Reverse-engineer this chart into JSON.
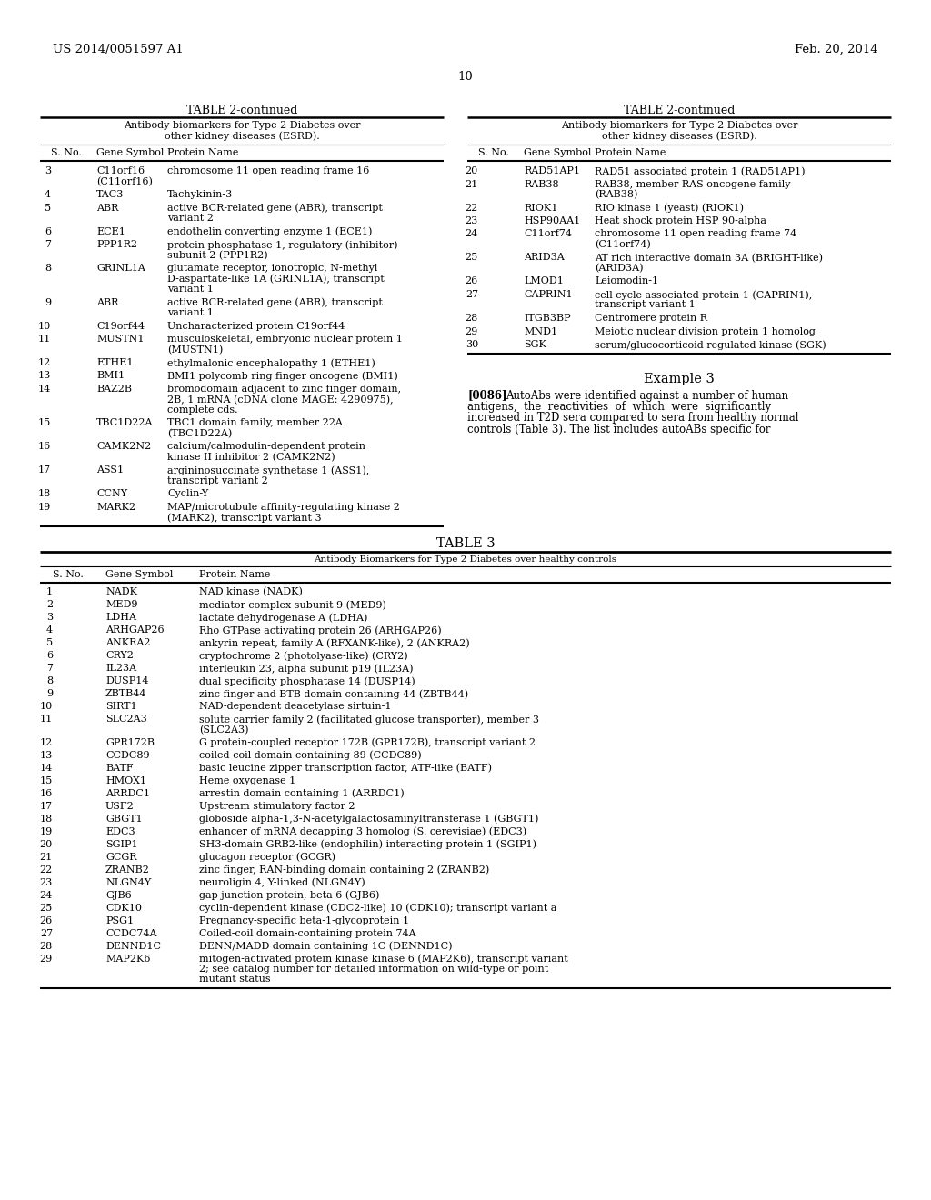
{
  "page_header_left": "US 2014/0051597 A1",
  "page_header_right": "Feb. 20, 2014",
  "page_number": "10",
  "table2_continued_title": "TABLE 2-continued",
  "table2_subtitle": "Antibody biomarkers for Type 2 Diabetes over\nother kidney diseases (ESRD).",
  "table2_left_rows": [
    [
      "3",
      "C11orf16\n(C11orf16)",
      "chromosome 11 open reading frame 16"
    ],
    [
      "4",
      "TAC3",
      "Tachykinin-3"
    ],
    [
      "5",
      "ABR",
      "active BCR-related gene (ABR), transcript\nvariant 2"
    ],
    [
      "6",
      "ECE1",
      "endothelin converting enzyme 1 (ECE1)"
    ],
    [
      "7",
      "PPP1R2",
      "protein phosphatase 1, regulatory (inhibitor)\nsubunit 2 (PPP1R2)"
    ],
    [
      "8",
      "GRINL1A",
      "glutamate receptor, ionotropic, N-methyl\nD-aspartate-like 1A (GRINL1A), transcript\nvariant 1"
    ],
    [
      "9",
      "ABR",
      "active BCR-related gene (ABR), transcript\nvariant 1"
    ],
    [
      "10",
      "C19orf44",
      "Uncharacterized protein C19orf44"
    ],
    [
      "11",
      "MUSTN1",
      "musculoskeletal, embryonic nuclear protein 1\n(MUSTN1)"
    ],
    [
      "12",
      "ETHE1",
      "ethylmalonic encephalopathy 1 (ETHE1)"
    ],
    [
      "13",
      "BMI1",
      "BMI1 polycomb ring finger oncogene (BMI1)"
    ],
    [
      "14",
      "BAZ2B",
      "bromodomain adjacent to zinc finger domain,\n2B, 1 mRNA (cDNA clone MAGE: 4290975),\ncomplete cds."
    ],
    [
      "15",
      "TBC1D22A",
      "TBC1 domain family, member 22A\n(TBC1D22A)"
    ],
    [
      "16",
      "CAMK2N2",
      "calcium/calmodulin-dependent protein\nkinase II inhibitor 2 (CAMK2N2)"
    ],
    [
      "17",
      "ASS1",
      "argininosuccinate synthetase 1 (ASS1),\ntranscript variant 2"
    ],
    [
      "18",
      "CCNY",
      "Cyclin-Y"
    ],
    [
      "19",
      "MARK2",
      "MAP/microtubule affinity-regulating kinase 2\n(MARK2), transcript variant 3"
    ]
  ],
  "table2_right_rows": [
    [
      "20",
      "RAD51AP1",
      "RAD51 associated protein 1 (RAD51AP1)"
    ],
    [
      "21",
      "RAB38",
      "RAB38, member RAS oncogene family\n(RAB38)"
    ],
    [
      "22",
      "RIOK1",
      "RIO kinase 1 (yeast) (RIOK1)"
    ],
    [
      "23",
      "HSP90AA1",
      "Heat shock protein HSP 90-alpha"
    ],
    [
      "24",
      "C11orf74",
      "chromosome 11 open reading frame 74\n(C11orf74)"
    ],
    [
      "25",
      "ARID3A",
      "AT rich interactive domain 3A (BRIGHT-like)\n(ARID3A)"
    ],
    [
      "26",
      "LMOD1",
      "Leiomodin-1"
    ],
    [
      "27",
      "CAPRIN1",
      "cell cycle associated protein 1 (CAPRIN1),\ntranscript variant 1"
    ],
    [
      "28",
      "ITGB3BP",
      "Centromere protein R"
    ],
    [
      "29",
      "MND1",
      "Meiotic nuclear division protein 1 homolog"
    ],
    [
      "30",
      "SGK",
      "serum/glucocorticoid regulated kinase (SGK)"
    ]
  ],
  "example3_title": "Example 3",
  "example3_lines": [
    "[0086]    AutoAbs were identified against a number of human",
    "antigens,  the  reactivities  of  which  were  significantly",
    "increased in T2D sera compared to sera from healthy normal",
    "controls (Table 3). The list includes autoABs specific for"
  ],
  "table3_title": "TABLE 3",
  "table3_subtitle": "Antibody Biomarkers for Type 2 Diabetes over healthy controls",
  "table3_rows": [
    [
      "1",
      "NADK",
      "NAD kinase (NADK)"
    ],
    [
      "2",
      "MED9",
      "mediator complex subunit 9 (MED9)"
    ],
    [
      "3",
      "LDHA",
      "lactate dehydrogenase A (LDHA)"
    ],
    [
      "4",
      "ARHGAP26",
      "Rho GTPase activating protein 26 (ARHGAP26)"
    ],
    [
      "5",
      "ANKRA2",
      "ankyrin repeat, family A (RFXANK-like), 2 (ANKRA2)"
    ],
    [
      "6",
      "CRY2",
      "cryptochrome 2 (photolyase-like) (CRY2)"
    ],
    [
      "7",
      "IL23A",
      "interleukin 23, alpha subunit p19 (IL23A)"
    ],
    [
      "8",
      "DUSP14",
      "dual specificity phosphatase 14 (DUSP14)"
    ],
    [
      "9",
      "ZBTB44",
      "zinc finger and BTB domain containing 44 (ZBTB44)"
    ],
    [
      "10",
      "SIRT1",
      "NAD-dependent deacetylase sirtuin-1"
    ],
    [
      "11",
      "SLC2A3",
      "solute carrier family 2 (facilitated glucose transporter), member 3\n(SLC2A3)"
    ],
    [
      "12",
      "GPR172B",
      "G protein-coupled receptor 172B (GPR172B), transcript variant 2"
    ],
    [
      "13",
      "CCDC89",
      "coiled-coil domain containing 89 (CCDC89)"
    ],
    [
      "14",
      "BATF",
      "basic leucine zipper transcription factor, ATF-like (BATF)"
    ],
    [
      "15",
      "HMOX1",
      "Heme oxygenase 1"
    ],
    [
      "16",
      "ARRDC1",
      "arrestin domain containing 1 (ARRDC1)"
    ],
    [
      "17",
      "USF2",
      "Upstream stimulatory factor 2"
    ],
    [
      "18",
      "GBGT1",
      "globoside alpha-1,3-N-acetylgalactosaminyltransferase 1 (GBGT1)"
    ],
    [
      "19",
      "EDC3",
      "enhancer of mRNA decapping 3 homolog (S. cerevisiae) (EDC3)"
    ],
    [
      "20",
      "SGIP1",
      "SH3-domain GRB2-like (endophilin) interacting protein 1 (SGIP1)"
    ],
    [
      "21",
      "GCGR",
      "glucagon receptor (GCGR)"
    ],
    [
      "22",
      "ZRANB2",
      "zinc finger, RAN-binding domain containing 2 (ZRANB2)"
    ],
    [
      "23",
      "NLGN4Y",
      "neuroligin 4, Y-linked (NLGN4Y)"
    ],
    [
      "24",
      "GJB6",
      "gap junction protein, beta 6 (GJB6)"
    ],
    [
      "25",
      "CDK10",
      "cyclin-dependent kinase (CDC2-like) 10 (CDK10); transcript variant a"
    ],
    [
      "26",
      "PSG1",
      "Pregnancy-specific beta-1-glycoprotein 1"
    ],
    [
      "27",
      "CCDC74A",
      "Coiled-coil domain-containing protein 74A"
    ],
    [
      "28",
      "DENND1C",
      "DENN/MADD domain containing 1C (DENND1C)"
    ],
    [
      "29",
      "MAP2K6",
      "mitogen-activated protein kinase kinase 6 (MAP2K6), transcript variant\n2; see catalog number for detailed information on wild-type or point\nmutant status"
    ]
  ],
  "bg_color": "#ffffff"
}
